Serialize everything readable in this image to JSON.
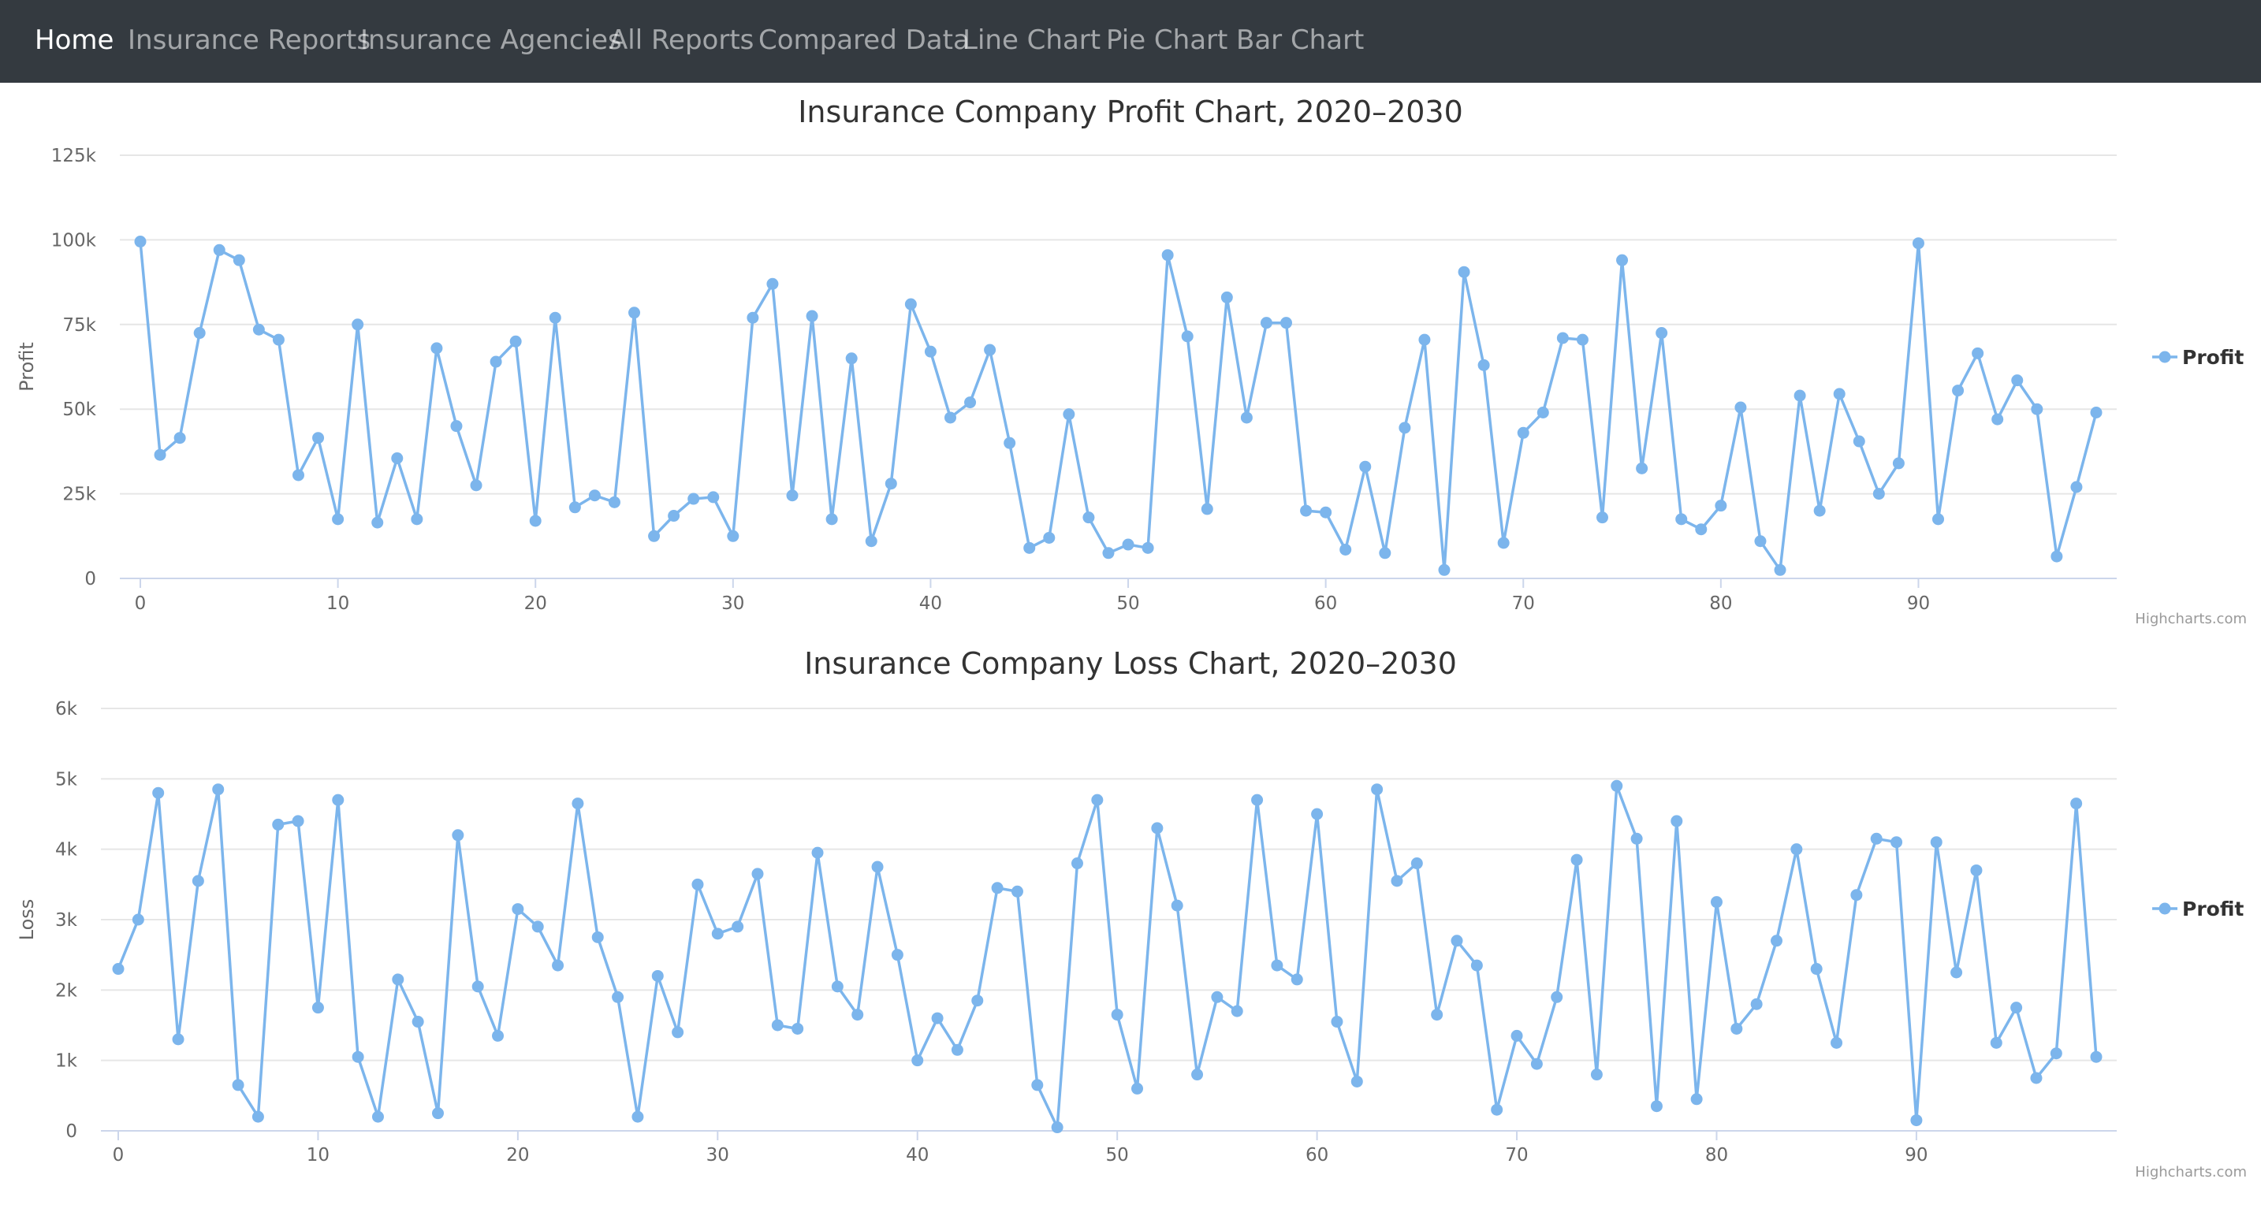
{
  "nav": {
    "items": [
      {
        "label": "Home",
        "active": true
      },
      {
        "label": "Insurance Reports",
        "active": false
      },
      {
        "label": "Insurance Agencies",
        "active": false
      },
      {
        "label": "All Reports",
        "active": false
      },
      {
        "label": "Compared Data",
        "active": false
      },
      {
        "label": "Line Chart",
        "active": false
      },
      {
        "label": "Pie Chart",
        "active": false
      },
      {
        "label": "Bar Chart",
        "active": false
      }
    ]
  },
  "colors": {
    "navbar_bg": "#343a40",
    "series": "#7cb5ec",
    "grid": "#e6e6e6",
    "axis": "#ccd6eb"
  },
  "credit": "Highcharts.com",
  "chart_data": [
    {
      "type": "line",
      "title": "Insurance Company Profit Chart, 2020–2030",
      "ylabel": "Profit",
      "xlabel": "",
      "xlim": [
        0,
        99
      ],
      "ylim": [
        0,
        125000
      ],
      "xticks": [
        0,
        10,
        20,
        30,
        40,
        50,
        60,
        70,
        80,
        90
      ],
      "yticks": [
        0,
        25000,
        50000,
        75000,
        100000,
        125000
      ],
      "ytick_labels": [
        "0",
        "25k",
        "50k",
        "75k",
        "100k",
        "125k"
      ],
      "grid": true,
      "legend": "right",
      "series": [
        {
          "name": "Profit",
          "values": [
            99500,
            36500,
            41500,
            72500,
            97000,
            94000,
            73500,
            70500,
            30500,
            41500,
            17500,
            75000,
            16500,
            35500,
            17500,
            68000,
            45000,
            27500,
            64000,
            70000,
            17000,
            77000,
            21000,
            24500,
            22500,
            78500,
            12500,
            18500,
            23500,
            24000,
            12500,
            77000,
            87000,
            24500,
            77500,
            17500,
            65000,
            11000,
            28000,
            81000,
            67000,
            47500,
            52000,
            67500,
            40000,
            9000,
            12000,
            48500,
            18000,
            7500,
            10000,
            9000,
            95500,
            71500,
            20500,
            83000,
            47500,
            75500,
            75500,
            20000,
            19500,
            8500,
            33000,
            7500,
            44500,
            70500,
            2500,
            90500,
            63000,
            10500,
            43000,
            49000,
            71000,
            70500,
            18000,
            94000,
            32500,
            72500,
            17500,
            14500,
            21500,
            50500,
            11000,
            2500,
            54000,
            20000,
            54500,
            40500,
            25000,
            34000,
            99000,
            17500,
            55500,
            66500,
            47000,
            58500,
            50000,
            6500,
            27000,
            49000
          ]
        }
      ]
    },
    {
      "type": "line",
      "title": "Insurance Company Loss Chart, 2020–2030",
      "ylabel": "Loss",
      "xlabel": "",
      "xlim": [
        0,
        99
      ],
      "ylim": [
        0,
        6000
      ],
      "xticks": [
        0,
        10,
        20,
        30,
        40,
        50,
        60,
        70,
        80,
        90
      ],
      "yticks": [
        0,
        1000,
        2000,
        3000,
        4000,
        5000,
        6000
      ],
      "ytick_labels": [
        "0",
        "1k",
        "2k",
        "3k",
        "4k",
        "5k",
        "6k"
      ],
      "grid": true,
      "legend": "right",
      "series": [
        {
          "name": "Profit",
          "values": [
            2300,
            3000,
            4800,
            1300,
            3550,
            4850,
            650,
            200,
            4350,
            4400,
            1750,
            4700,
            1050,
            200,
            2150,
            1550,
            250,
            4200,
            2050,
            1350,
            3150,
            2900,
            2350,
            4650,
            2750,
            1900,
            200,
            2200,
            1400,
            3500,
            2800,
            2900,
            3650,
            1500,
            1450,
            3950,
            2050,
            1650,
            3750,
            2500,
            1000,
            1600,
            1150,
            1850,
            3450,
            3400,
            650,
            50,
            3800,
            4700,
            1650,
            600,
            4300,
            3200,
            800,
            1900,
            1700,
            4700,
            2350,
            2150,
            4500,
            1550,
            700,
            4850,
            3550,
            3800,
            1650,
            2700,
            2350,
            300,
            1350,
            950,
            1900,
            3850,
            800,
            4900,
            4150,
            350,
            4400,
            450,
            3250,
            1450,
            1800,
            2700,
            4000,
            2300,
            1250,
            3350,
            4150,
            4100,
            150,
            4100,
            2250,
            3700,
            1250,
            1750,
            750,
            1100,
            4650,
            1050
          ]
        }
      ]
    }
  ]
}
